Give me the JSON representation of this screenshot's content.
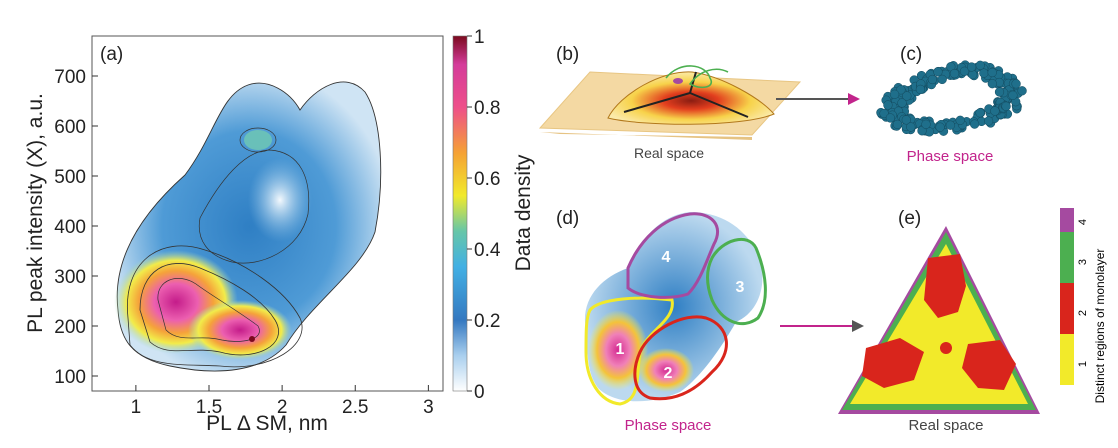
{
  "panels": {
    "a": {
      "label": "(a)"
    },
    "b": {
      "label": "(b)",
      "caption": "Real space"
    },
    "c": {
      "label": "(c)",
      "caption": "Phase space"
    },
    "d": {
      "label": "(d)",
      "caption": "Phase space",
      "regions": [
        "1",
        "2",
        "3",
        "4"
      ]
    },
    "e": {
      "label": "(e)",
      "caption": "Real space"
    }
  },
  "colors": {
    "magenta_text": "#c2248c",
    "region1": "#f2ea2a",
    "region2": "#d9251c",
    "region3": "#4caf50",
    "region4": "#a54aa0",
    "scatter_blue": "#1f6f8b",
    "substrate": "#f4d9a3"
  },
  "chart_data": [
    {
      "type": "heatmap",
      "panel": "a",
      "xlabel": "PL Δ SM, nm",
      "ylabel": "PL peak intensity (X), a.u.",
      "xlim": [
        0.7,
        3.1
      ],
      "ylim": [
        70,
        780
      ],
      "xticks": [
        1,
        1.5,
        2,
        2.5,
        3
      ],
      "yticks": [
        100,
        200,
        300,
        400,
        500,
        600,
        700
      ],
      "density_peaks": [
        {
          "x": 1.3,
          "y": 250,
          "density": 0.85
        },
        {
          "x": 1.78,
          "y": 160,
          "density": 1.0
        },
        {
          "x": 1.8,
          "y": 555,
          "density": 0.4
        }
      ],
      "colorbar": {
        "label": "Data density",
        "range": [
          0,
          1
        ],
        "ticks": [
          "0",
          "0.2",
          "0.4",
          "0.6",
          "0.8",
          "1"
        ]
      }
    },
    {
      "type": "heatmap",
      "panel": "e",
      "colorbar": {
        "label": "Distinct regions of monolayer",
        "ticks": [
          "1",
          "2",
          "3",
          "4"
        ],
        "colors": [
          "#f2ea2a",
          "#d9251c",
          "#4caf50",
          "#a54aa0"
        ]
      }
    }
  ]
}
